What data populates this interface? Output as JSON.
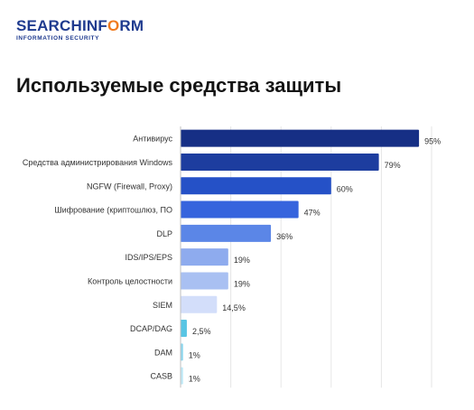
{
  "logo": {
    "part1": "SEARCHINF",
    "part2": "O",
    "part3": "RM",
    "subtitle": "INFORMATION SECURITY"
  },
  "header": {
    "title": "Используемые средства защиты"
  },
  "chart_data": {
    "type": "bar",
    "orientation": "horizontal",
    "title": "Используемые средства защиты",
    "categories": [
      "Антивирус",
      "Средства администрирования Windows",
      "NGFW (Firewall, Proxy)",
      "Шифрование (криптошлюз, ПО",
      "DLP",
      "IDS/IPS/EPS",
      "Контроль целостности",
      "SIEM",
      "DCAP/DAG",
      "DAM",
      "CASB"
    ],
    "values": [
      95,
      79,
      60,
      47,
      36,
      19,
      19,
      14.5,
      2.5,
      1,
      1
    ],
    "value_labels": [
      "95%",
      "79%",
      "60%",
      "47%",
      "36%",
      "19%",
      "19%",
      "14,5%",
      "2,5%",
      "1%",
      "1%"
    ],
    "colors": [
      "#162f85",
      "#1d3d9f",
      "#2551c7",
      "#3664dd",
      "#5b86e7",
      "#8eabee",
      "#a9c0f2",
      "#d3defa",
      "#58c5e4",
      "#8fd7ee",
      "#c0e9f7"
    ],
    "xlim": [
      0,
      100
    ],
    "grid": true
  }
}
